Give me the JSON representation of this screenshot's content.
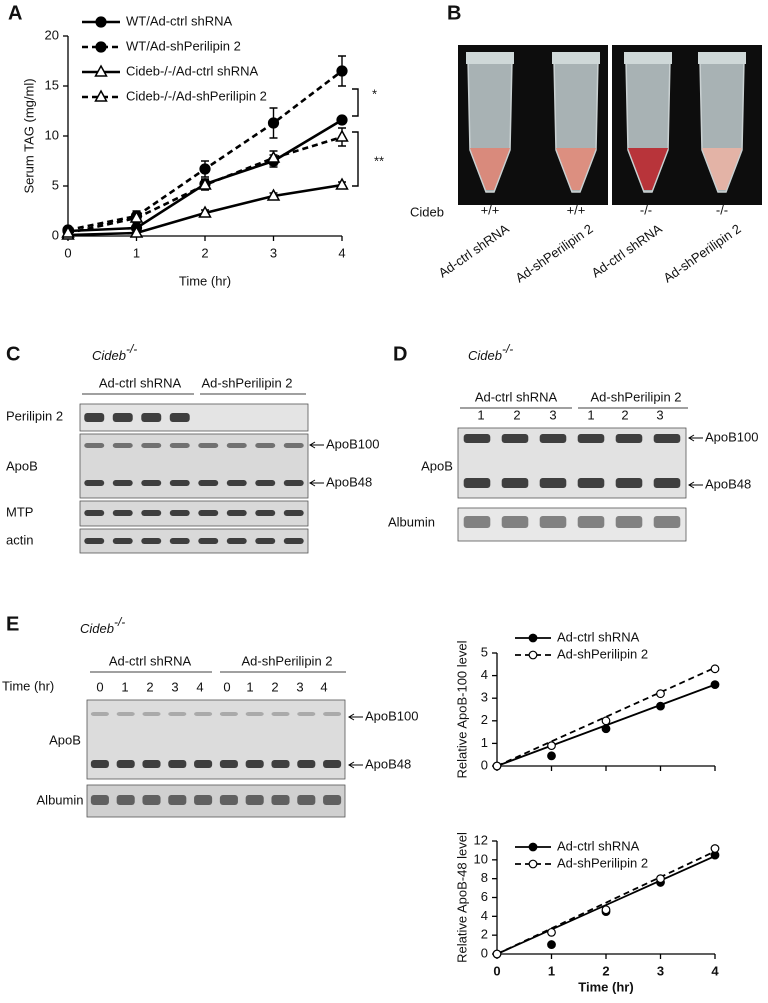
{
  "chart_data": [
    {
      "type": "line",
      "panel": "A",
      "xlabel": "Time (hr)",
      "ylabel": "Serum TAG (mg/ml)",
      "x": [
        0,
        1,
        2,
        3,
        4
      ],
      "xlim": [
        0,
        4
      ],
      "ylim": [
        0,
        20
      ],
      "xticks": [
        0,
        1,
        2,
        3,
        4
      ],
      "yticks": [
        0,
        5,
        10,
        15,
        20
      ],
      "series": [
        {
          "name": "WT/Ad-ctrl shRNA",
          "color": "#000000",
          "dashed": false,
          "marker": "circle-filled",
          "values": [
            0.5,
            0.8,
            5.2,
            7.5,
            11.6
          ],
          "errors": [
            0.2,
            0.3,
            0.5,
            0.6,
            0.3
          ]
        },
        {
          "name": "WT/Ad-shPerilipin 2",
          "color": "#000000",
          "dashed": true,
          "marker": "circle-filled",
          "values": [
            0.6,
            2.0,
            6.7,
            11.3,
            16.5
          ],
          "errors": [
            0.2,
            0.5,
            0.8,
            1.5,
            1.5
          ]
        },
        {
          "name": "Cideb-/-/Ad-ctrl shRNA",
          "color": "#000000",
          "dashed": false,
          "marker": "triangle-open",
          "values": [
            0.1,
            0.3,
            2.3,
            4.0,
            5.1
          ],
          "errors": [
            0.1,
            0.1,
            0.3,
            0.3,
            0.3
          ]
        },
        {
          "name": "Cideb-/-/Ad-shPerilipin 2",
          "color": "#000000",
          "dashed": true,
          "marker": "triangle-open",
          "values": [
            0.3,
            1.8,
            5.1,
            7.8,
            9.9
          ],
          "errors": [
            0.2,
            0.5,
            0.5,
            0.7,
            0.9
          ]
        }
      ],
      "annotations": [
        "*",
        "**"
      ]
    },
    {
      "type": "scatter-fit",
      "ylabel": "Relative ApoB-100 level",
      "x": [
        0,
        1,
        2,
        3,
        4
      ],
      "xlim": [
        0,
        4
      ],
      "ylim": [
        0,
        5
      ],
      "xticks": [
        0,
        1,
        2,
        3,
        4
      ],
      "yticks": [
        0,
        1,
        2,
        3,
        4,
        5
      ],
      "show_xtick_labels": false,
      "series": [
        {
          "name": "Ad-ctrl shRNA",
          "color": "#000000",
          "dashed": false,
          "marker": "circle-filled",
          "values": [
            0,
            0.45,
            1.65,
            2.65,
            3.6
          ],
          "fit": [
            0,
            3.6
          ]
        },
        {
          "name": "Ad-shPerilipin 2",
          "color": "#000000",
          "dashed": true,
          "marker": "circle-open",
          "values": [
            0,
            0.9,
            2.0,
            3.2,
            4.3
          ],
          "fit": [
            0,
            4.35
          ]
        }
      ]
    },
    {
      "type": "scatter-fit",
      "xlabel": "Time (hr)",
      "ylabel": "Relative ApoB-48 level",
      "x": [
        0,
        1,
        2,
        3,
        4
      ],
      "xlim": [
        0,
        4
      ],
      "ylim": [
        0,
        12
      ],
      "xticks": [
        0,
        1,
        2,
        3,
        4
      ],
      "yticks": [
        0,
        2,
        4,
        6,
        8,
        10,
        12
      ],
      "series": [
        {
          "name": "Ad-ctrl shRNA",
          "color": "#000000",
          "dashed": false,
          "marker": "circle-filled",
          "values": [
            0,
            1.0,
            4.5,
            7.6,
            10.5
          ],
          "fit": [
            0,
            10.4
          ]
        },
        {
          "name": "Ad-shPerilipin 2",
          "color": "#000000",
          "dashed": true,
          "marker": "circle-open",
          "values": [
            0,
            2.3,
            4.7,
            8.0,
            11.2
          ],
          "fit": [
            0,
            10.9
          ]
        }
      ]
    }
  ],
  "panels": {
    "B": {
      "label": "B",
      "row_label": "Cideb",
      "genotypes": [
        "+/+",
        "+/+",
        "-/-",
        "-/-"
      ],
      "lanes": [
        "Ad-ctrl shRNA",
        "Ad-shPerilipin 2",
        "Ad-ctrl shRNA",
        "Ad-shPerilipin 2"
      ]
    },
    "C": {
      "label": "C",
      "gene": "Cideb",
      "genotype": "-/-",
      "groups": [
        "Ad-ctrl shRNA",
        "Ad-shPerilipin 2"
      ],
      "rows": [
        "Perilipin 2",
        "ApoB",
        "MTP",
        "actin"
      ],
      "arrows": [
        "ApoB100",
        "ApoB48"
      ]
    },
    "D": {
      "label": "D",
      "gene": "Cideb",
      "genotype": "-/-",
      "groups": [
        "Ad-ctrl shRNA",
        "Ad-shPerilipin 2"
      ],
      "lanes": [
        "1",
        "2",
        "3",
        "1",
        "2",
        "3"
      ],
      "rows": [
        "ApoB",
        "Albumin"
      ],
      "arrows": [
        "ApoB100",
        "ApoB48"
      ]
    },
    "E": {
      "label": "E",
      "gene": "Cideb",
      "genotype": "-/-",
      "groups": [
        "Ad-ctrl shRNA",
        "Ad-shPerilipin 2"
      ],
      "lane_title": "Time (hr)",
      "lanes": [
        "0",
        "1",
        "2",
        "3",
        "4",
        "0",
        "1",
        "2",
        "3",
        "4"
      ],
      "rows": [
        "ApoB",
        "Albumin"
      ],
      "arrows": [
        "ApoB100",
        "ApoB48"
      ]
    }
  }
}
